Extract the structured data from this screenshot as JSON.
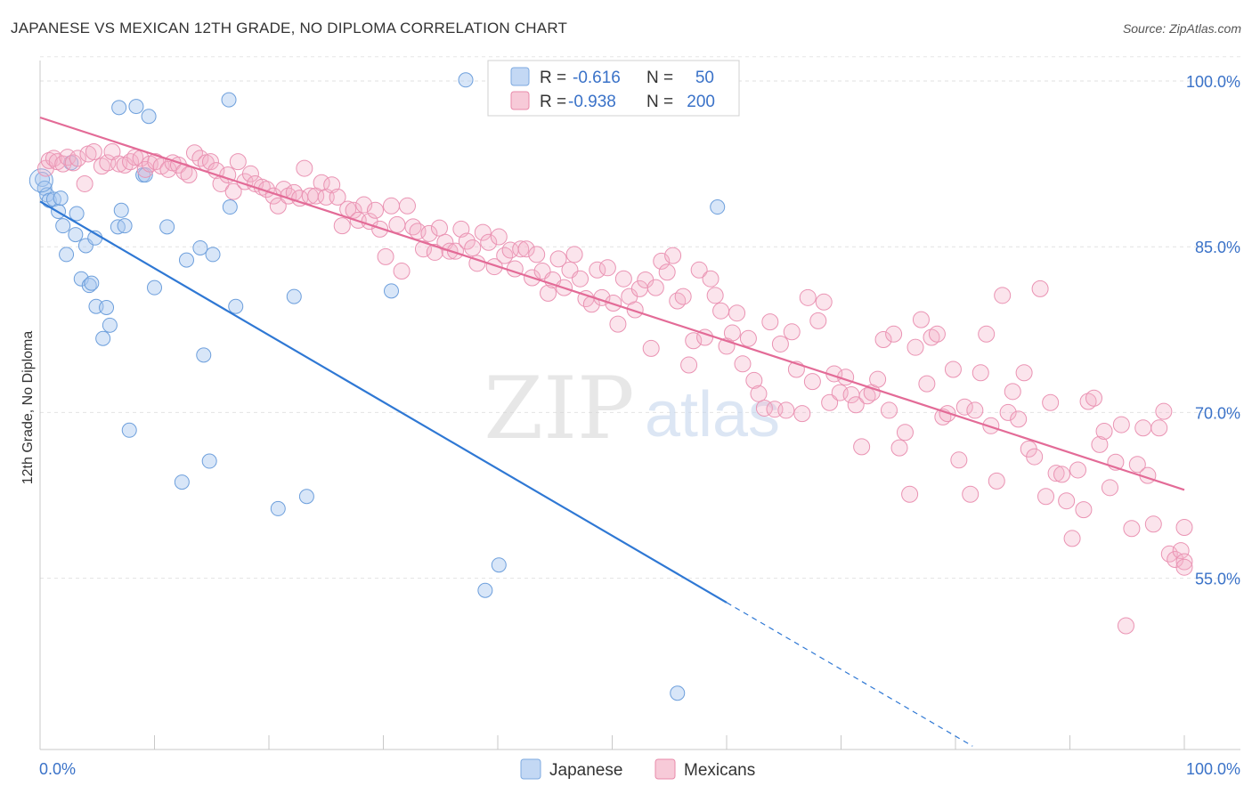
{
  "header": {
    "title": "JAPANESE VS MEXICAN 12TH GRADE, NO DIPLOMA CORRELATION CHART",
    "source": "Source: ZipAtlas.com"
  },
  "watermark": {
    "zip": "ZIP",
    "atlas": "atlas"
  },
  "legend_box": {
    "rows": [
      {
        "r_label": "R =",
        "r_value": "-0.616",
        "n_label": "N =",
        "n_value": "50"
      },
      {
        "r_label": "R =",
        "r_value": "-0.938",
        "n_label": "N =",
        "n_value": "200"
      }
    ]
  },
  "colors": {
    "japanese": "#a9c8ef",
    "japanese_line": "#2f78d4",
    "mexicans": "#f3b3c8",
    "mexicans_line": "#e36b97",
    "value_text": "#3a72c8"
  },
  "chart_data": {
    "type": "scatter",
    "title": "JAPANESE VS MEXICAN 12TH GRADE, NO DIPLOMA CORRELATION CHART",
    "xlabel": "",
    "ylabel": "12th Grade, No Diploma",
    "x_tick_labels": [
      "0.0%",
      "100.0%"
    ],
    "y_tick_labels": [
      "100.0%",
      "85.0%",
      "70.0%",
      "55.0%"
    ],
    "y_ticks": [
      100,
      85,
      70,
      55
    ],
    "xlim": [
      0,
      100
    ],
    "ylim": [
      39.5,
      102.5
    ],
    "grid": true,
    "legend_position": "bottom-center",
    "series": [
      {
        "name": "Japanese",
        "r": -0.616,
        "n": 50,
        "trend": {
          "x": [
            0,
            60
          ],
          "y": [
            89.1,
            52.8
          ]
        },
        "trend_dashed": {
          "x": [
            60,
            81.5
          ],
          "y": [
            52.8,
            39.8
          ]
        },
        "points": [
          [
            0.2,
            91.1
          ],
          [
            0.4,
            90.3
          ],
          [
            0.6,
            89.7
          ],
          [
            0.8,
            89.2
          ],
          [
            1.2,
            89.3
          ],
          [
            1.6,
            88.2
          ],
          [
            1.8,
            89.4
          ],
          [
            2.0,
            86.9
          ],
          [
            2.3,
            84.3
          ],
          [
            2.7,
            92.6
          ],
          [
            3.1,
            86.1
          ],
          [
            3.2,
            88.0
          ],
          [
            3.6,
            82.1
          ],
          [
            4.0,
            85.1
          ],
          [
            4.3,
            81.5
          ],
          [
            4.5,
            81.7
          ],
          [
            4.8,
            85.8
          ],
          [
            4.9,
            79.6
          ],
          [
            5.5,
            76.7
          ],
          [
            5.8,
            79.5
          ],
          [
            6.1,
            77.9
          ],
          [
            6.8,
            86.8
          ],
          [
            6.9,
            97.6
          ],
          [
            7.1,
            88.3
          ],
          [
            7.4,
            86.9
          ],
          [
            7.8,
            68.4
          ],
          [
            8.4,
            97.7
          ],
          [
            9.0,
            91.5
          ],
          [
            9.2,
            91.5
          ],
          [
            9.5,
            96.8
          ],
          [
            10.0,
            81.3
          ],
          [
            11.1,
            86.8
          ],
          [
            12.4,
            63.7
          ],
          [
            12.8,
            83.8
          ],
          [
            14.0,
            84.9
          ],
          [
            14.3,
            75.2
          ],
          [
            14.8,
            65.6
          ],
          [
            15.1,
            84.3
          ],
          [
            16.5,
            98.3
          ],
          [
            16.6,
            88.6
          ],
          [
            17.1,
            79.6
          ],
          [
            20.8,
            61.3
          ],
          [
            22.2,
            80.5
          ],
          [
            23.3,
            62.4
          ],
          [
            30.7,
            81.0
          ],
          [
            37.2,
            100.1
          ],
          [
            38.9,
            53.9
          ],
          [
            40.1,
            56.2
          ],
          [
            59.2,
            88.6
          ],
          [
            55.7,
            44.6
          ]
        ]
      },
      {
        "name": "Mexicans",
        "r": -0.938,
        "n": 200,
        "trend": {
          "x": [
            0,
            100
          ],
          "y": [
            96.7,
            63.0
          ]
        },
        "points": [
          [
            0.5,
            92.1
          ],
          [
            0.8,
            92.8
          ],
          [
            1.2,
            93.0
          ],
          [
            1.5,
            92.7
          ],
          [
            2.0,
            92.5
          ],
          [
            2.4,
            93.1
          ],
          [
            2.9,
            92.6
          ],
          [
            3.3,
            93.0
          ],
          [
            3.9,
            90.7
          ],
          [
            4.2,
            93.4
          ],
          [
            4.7,
            93.6
          ],
          [
            5.4,
            92.3
          ],
          [
            5.9,
            92.6
          ],
          [
            6.3,
            93.6
          ],
          [
            6.9,
            92.5
          ],
          [
            7.4,
            92.4
          ],
          [
            7.9,
            92.7
          ],
          [
            8.3,
            93.1
          ],
          [
            8.8,
            93.0
          ],
          [
            9.2,
            92.0
          ],
          [
            9.6,
            92.5
          ],
          [
            10.1,
            92.7
          ],
          [
            10.6,
            92.3
          ],
          [
            11.2,
            92.0
          ],
          [
            11.6,
            92.6
          ],
          [
            12.1,
            92.4
          ],
          [
            12.6,
            91.8
          ],
          [
            13.0,
            91.5
          ],
          [
            13.5,
            93.5
          ],
          [
            14.0,
            93.0
          ],
          [
            14.5,
            92.6
          ],
          [
            14.9,
            92.7
          ],
          [
            15.4,
            91.9
          ],
          [
            15.8,
            90.7
          ],
          [
            16.4,
            91.5
          ],
          [
            16.9,
            90.0
          ],
          [
            17.3,
            92.7
          ],
          [
            17.9,
            90.9
          ],
          [
            18.4,
            91.6
          ],
          [
            18.8,
            90.7
          ],
          [
            19.4,
            90.4
          ],
          [
            19.8,
            90.2
          ],
          [
            20.4,
            89.6
          ],
          [
            20.8,
            88.7
          ],
          [
            21.3,
            90.2
          ],
          [
            21.7,
            89.6
          ],
          [
            22.2,
            89.9
          ],
          [
            22.7,
            89.4
          ],
          [
            23.1,
            92.1
          ],
          [
            23.6,
            89.6
          ],
          [
            24.1,
            89.6
          ],
          [
            24.6,
            90.8
          ],
          [
            25.0,
            89.5
          ],
          [
            25.5,
            90.6
          ],
          [
            26.0,
            89.5
          ],
          [
            26.4,
            86.9
          ],
          [
            26.9,
            88.4
          ],
          [
            27.4,
            88.3
          ],
          [
            27.8,
            87.4
          ],
          [
            28.3,
            88.8
          ],
          [
            28.8,
            87.3
          ],
          [
            29.3,
            88.3
          ],
          [
            29.7,
            86.6
          ],
          [
            30.2,
            84.1
          ],
          [
            30.7,
            88.7
          ],
          [
            31.2,
            87.0
          ],
          [
            31.6,
            82.8
          ],
          [
            32.1,
            88.7
          ],
          [
            32.6,
            86.8
          ],
          [
            33.0,
            86.4
          ],
          [
            33.5,
            84.8
          ],
          [
            34.0,
            86.2
          ],
          [
            34.5,
            84.5
          ],
          [
            34.9,
            86.7
          ],
          [
            35.4,
            85.4
          ],
          [
            35.8,
            84.6
          ],
          [
            36.3,
            84.6
          ],
          [
            36.8,
            86.6
          ],
          [
            37.3,
            85.5
          ],
          [
            37.8,
            84.9
          ],
          [
            38.2,
            83.5
          ],
          [
            38.7,
            86.3
          ],
          [
            39.2,
            85.4
          ],
          [
            39.7,
            83.2
          ],
          [
            40.1,
            85.9
          ],
          [
            40.6,
            84.2
          ],
          [
            41.1,
            84.7
          ],
          [
            41.5,
            83.0
          ],
          [
            42.0,
            84.8
          ],
          [
            42.5,
            84.8
          ],
          [
            43.0,
            82.2
          ],
          [
            43.4,
            84.3
          ],
          [
            43.9,
            82.8
          ],
          [
            44.4,
            80.8
          ],
          [
            44.8,
            82.0
          ],
          [
            45.3,
            83.9
          ],
          [
            45.8,
            81.3
          ],
          [
            46.3,
            82.9
          ],
          [
            46.7,
            84.3
          ],
          [
            47.2,
            82.1
          ],
          [
            47.7,
            80.3
          ],
          [
            48.2,
            79.8
          ],
          [
            48.7,
            82.9
          ],
          [
            49.1,
            80.4
          ],
          [
            49.6,
            83.1
          ],
          [
            50.1,
            79.9
          ],
          [
            50.5,
            78.0
          ],
          [
            51.0,
            82.1
          ],
          [
            51.5,
            80.5
          ],
          [
            52.0,
            79.3
          ],
          [
            52.4,
            81.2
          ],
          [
            52.9,
            82.0
          ],
          [
            53.4,
            75.8
          ],
          [
            53.8,
            81.3
          ],
          [
            54.3,
            83.7
          ],
          [
            54.8,
            82.7
          ],
          [
            55.3,
            84.2
          ],
          [
            55.7,
            80.1
          ],
          [
            56.2,
            80.5
          ],
          [
            56.7,
            74.3
          ],
          [
            57.1,
            76.5
          ],
          [
            57.6,
            82.9
          ],
          [
            58.1,
            76.8
          ],
          [
            58.6,
            82.1
          ],
          [
            59.0,
            80.6
          ],
          [
            59.5,
            79.2
          ],
          [
            60.0,
            76.0
          ],
          [
            60.5,
            77.2
          ],
          [
            60.9,
            79.0
          ],
          [
            61.4,
            74.4
          ],
          [
            61.9,
            76.7
          ],
          [
            62.4,
            72.9
          ],
          [
            62.8,
            71.7
          ],
          [
            63.3,
            70.4
          ],
          [
            63.8,
            78.2
          ],
          [
            64.2,
            70.3
          ],
          [
            64.7,
            76.2
          ],
          [
            65.2,
            70.2
          ],
          [
            65.7,
            77.3
          ],
          [
            66.1,
            73.9
          ],
          [
            66.6,
            69.9
          ],
          [
            67.1,
            80.4
          ],
          [
            67.5,
            72.8
          ],
          [
            68.0,
            78.3
          ],
          [
            68.5,
            80.0
          ],
          [
            69.0,
            70.9
          ],
          [
            69.4,
            73.5
          ],
          [
            69.9,
            71.8
          ],
          [
            70.4,
            73.2
          ],
          [
            70.9,
            71.6
          ],
          [
            71.3,
            70.7
          ],
          [
            71.8,
            66.9
          ],
          [
            72.3,
            71.5
          ],
          [
            72.7,
            71.8
          ],
          [
            73.2,
            73.0
          ],
          [
            73.7,
            76.6
          ],
          [
            74.2,
            70.2
          ],
          [
            74.6,
            77.1
          ],
          [
            75.1,
            66.8
          ],
          [
            75.6,
            68.2
          ],
          [
            76.0,
            62.6
          ],
          [
            76.5,
            75.9
          ],
          [
            77.0,
            78.4
          ],
          [
            77.5,
            72.6
          ],
          [
            77.9,
            76.8
          ],
          [
            78.4,
            77.1
          ],
          [
            78.9,
            69.6
          ],
          [
            79.3,
            69.9
          ],
          [
            79.8,
            73.9
          ],
          [
            80.3,
            65.7
          ],
          [
            80.8,
            70.5
          ],
          [
            81.3,
            62.6
          ],
          [
            81.7,
            70.2
          ],
          [
            82.2,
            73.6
          ],
          [
            82.7,
            77.1
          ],
          [
            83.1,
            68.8
          ],
          [
            83.6,
            63.8
          ],
          [
            84.1,
            80.6
          ],
          [
            84.6,
            70.0
          ],
          [
            85.0,
            71.9
          ],
          [
            85.5,
            69.4
          ],
          [
            86.0,
            73.6
          ],
          [
            86.4,
            66.7
          ],
          [
            86.9,
            66.0
          ],
          [
            87.4,
            81.2
          ],
          [
            87.9,
            62.4
          ],
          [
            88.3,
            70.9
          ],
          [
            88.8,
            64.5
          ],
          [
            89.3,
            64.4
          ],
          [
            89.7,
            62.0
          ],
          [
            90.2,
            58.6
          ],
          [
            90.7,
            64.8
          ],
          [
            91.2,
            61.2
          ],
          [
            91.6,
            71.0
          ],
          [
            92.1,
            71.3
          ],
          [
            92.6,
            67.1
          ],
          [
            93.0,
            68.3
          ],
          [
            93.5,
            63.2
          ],
          [
            94.0,
            65.5
          ],
          [
            94.5,
            68.9
          ],
          [
            94.9,
            50.7
          ],
          [
            95.4,
            59.5
          ],
          [
            95.9,
            65.3
          ],
          [
            96.4,
            68.6
          ],
          [
            96.8,
            64.3
          ],
          [
            97.3,
            59.9
          ],
          [
            97.8,
            68.6
          ],
          [
            98.2,
            70.1
          ],
          [
            98.7,
            57.2
          ],
          [
            99.2,
            56.7
          ],
          [
            99.7,
            57.5
          ],
          [
            100.0,
            59.6
          ],
          [
            100.0,
            56.5
          ],
          [
            100.0,
            56.0
          ]
        ]
      }
    ]
  },
  "bottom_legend": {
    "items": [
      "Japanese",
      "Mexicans"
    ]
  }
}
